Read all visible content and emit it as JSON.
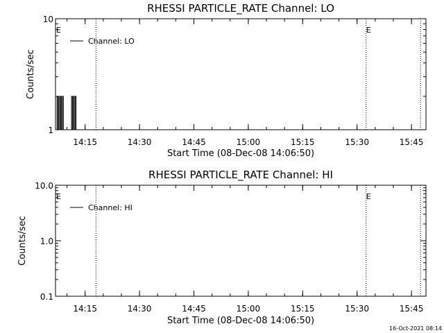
{
  "charts": [
    {
      "type": "line",
      "title": "RHESSI PARTICLE_RATE Channel: LO",
      "xlabel": "Start Time (08-Dec-08 14:06:50)",
      "ylabel": "Counts/sec",
      "yscale": "log",
      "ylim": [
        1,
        10
      ],
      "yticks": [
        "1",
        "10"
      ],
      "xlim": [
        "14:06:50",
        "15:49:00"
      ],
      "xticks": [
        {
          "label": "14:15",
          "t": "14:15"
        },
        {
          "label": "14:30",
          "t": "14:30"
        },
        {
          "label": "14:45",
          "t": "14:45"
        },
        {
          "label": "15:00",
          "t": "15:00"
        },
        {
          "label": "15:15",
          "t": "15:15"
        },
        {
          "label": "15:30",
          "t": "15:30"
        },
        {
          "label": "15:45",
          "t": "15:45"
        }
      ],
      "legend": {
        "entries": [
          "Channel: LO"
        ],
        "position": "top-left"
      },
      "markers": [
        {
          "time": "14:06:50",
          "label": "E"
        },
        {
          "time": "15:32:30",
          "label": "E"
        }
      ],
      "dotted_lines": [
        "14:18:00",
        "15:32:30",
        "15:47:30"
      ],
      "series": [
        {
          "name": "Channel: LO",
          "x": [
            "14:07:00",
            "14:07:15",
            "14:07:30",
            "14:07:45",
            "14:08:00",
            "14:08:15",
            "14:08:30",
            "14:08:45",
            "14:09:00",
            "14:09:15",
            "14:09:30",
            "14:10:30",
            "14:11:00",
            "14:11:15",
            "14:11:30",
            "14:11:45",
            "14:12:00",
            "14:12:15",
            "14:12:30",
            "14:12:45"
          ],
          "y": [
            1,
            2,
            1,
            2,
            1,
            2,
            1,
            2,
            1,
            1,
            1,
            1,
            1,
            2,
            1,
            2,
            1,
            2,
            1,
            1
          ]
        }
      ]
    },
    {
      "type": "line",
      "title": "RHESSI PARTICLE_RATE Channel: HI",
      "xlabel": "Start Time (08-Dec-08 14:06:50)",
      "ylabel": "Counts/sec",
      "yscale": "log",
      "ylim": [
        0.1,
        10
      ],
      "yticks": [
        "0.1",
        "1.0",
        "10.0"
      ],
      "xlim": [
        "14:06:50",
        "15:49:00"
      ],
      "xticks": [
        {
          "label": "14:15",
          "t": "14:15"
        },
        {
          "label": "14:30",
          "t": "14:30"
        },
        {
          "label": "14:45",
          "t": "14:45"
        },
        {
          "label": "15:00",
          "t": "15:00"
        },
        {
          "label": "15:15",
          "t": "15:15"
        },
        {
          "label": "15:30",
          "t": "15:30"
        },
        {
          "label": "15:45",
          "t": "15:45"
        }
      ],
      "legend": {
        "entries": [
          "Channel: HI"
        ],
        "position": "top-left"
      },
      "markers": [
        {
          "time": "14:06:50",
          "label": "E"
        },
        {
          "time": "15:32:30",
          "label": "E"
        }
      ],
      "dotted_lines": [
        "14:18:00",
        "15:32:30",
        "15:47:30"
      ],
      "series": [
        {
          "name": "Channel: HI",
          "x": [],
          "y": []
        }
      ]
    }
  ],
  "chart_data": [
    {
      "type": "line",
      "title": "RHESSI PARTICLE_RATE Channel: LO",
      "xlabel": "Start Time (08-Dec-08 14:06:50)",
      "ylabel": "Counts/sec",
      "yscale": "log",
      "ylim": [
        1,
        10
      ],
      "series": [
        {
          "name": "Channel: LO",
          "x": [
            "14:07:00",
            "14:07:15",
            "14:07:30",
            "14:07:45",
            "14:08:00",
            "14:08:15",
            "14:08:30",
            "14:08:45",
            "14:09:00",
            "14:09:15",
            "14:09:30",
            "14:10:30",
            "14:11:00",
            "14:11:15",
            "14:11:30",
            "14:11:45",
            "14:12:00",
            "14:12:15",
            "14:12:30",
            "14:12:45"
          ],
          "y": [
            1,
            2,
            1,
            2,
            1,
            2,
            1,
            2,
            1,
            1,
            1,
            1,
            1,
            2,
            1,
            2,
            1,
            2,
            1,
            1
          ]
        }
      ]
    },
    {
      "type": "line",
      "title": "RHESSI PARTICLE_RATE Channel: HI",
      "xlabel": "Start Time (08-Dec-08 14:06:50)",
      "ylabel": "Counts/sec",
      "yscale": "log",
      "ylim": [
        0.1,
        10
      ],
      "series": [
        {
          "name": "Channel: HI",
          "x": [],
          "y": []
        }
      ]
    }
  ],
  "footer": {
    "timestamp": "16-Oct-2021 08:14"
  }
}
